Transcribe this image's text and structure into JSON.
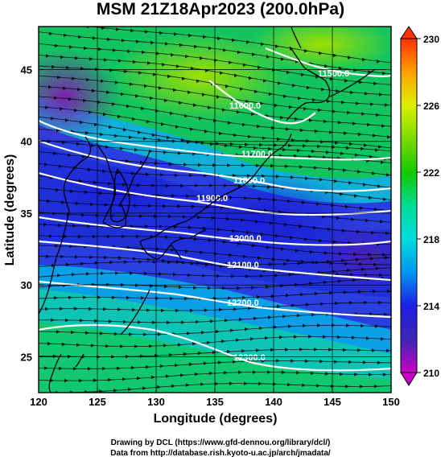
{
  "title": "MSM 21Z18Apr2023 (200.0hPa)",
  "xlabel": "Longitude (degrees)",
  "ylabel": "Latitude  (degrees)",
  "credit_line1": "Drawing by DCL (https://www.gfd-dennou.org/library/dcl/)",
  "credit_line2": "Data from http://database.rish.kyoto-u.ac.jp/arch/jmadata/",
  "map": {
    "lon_range": [
      120,
      150
    ],
    "lat_range": [
      22.5,
      48
    ],
    "lon_ticks": [
      120,
      125,
      130,
      135,
      140,
      145,
      150
    ],
    "lat_ticks": [
      25,
      30,
      35,
      40,
      45
    ],
    "graticule_lon": [
      125,
      130,
      135,
      140,
      145
    ],
    "graticule_lat": [
      25,
      30,
      35,
      40,
      45
    ]
  },
  "colorbar": {
    "min": 210,
    "max": 230,
    "tick_labels": [
      "210",
      "214",
      "218",
      "222",
      "226",
      "230"
    ],
    "colors": [
      "#c800c8",
      "#3c28b4",
      "#1e1ee6",
      "#0096f0",
      "#00dcdc",
      "#00dc96",
      "#14c800",
      "#78dc00",
      "#dcf000",
      "#ffa000",
      "#ff3200"
    ]
  },
  "contours": [
    {
      "label": "11500.0"
    },
    {
      "label": "11600.0"
    },
    {
      "label": "11700.0"
    },
    {
      "label": "11800.0"
    },
    {
      "label": "11900.0"
    },
    {
      "label": "12000.0"
    },
    {
      "label": "12100.0"
    },
    {
      "label": "12200.0"
    },
    {
      "label": "12300.0"
    }
  ]
}
